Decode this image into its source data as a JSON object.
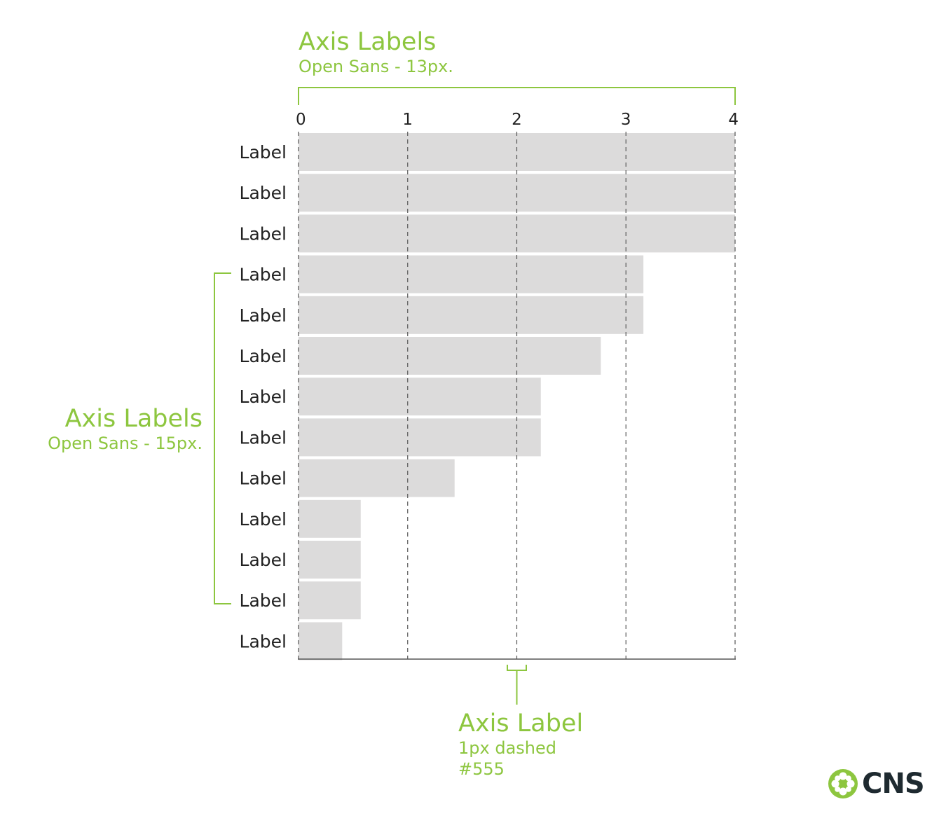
{
  "chart_data": {
    "type": "bar",
    "orientation": "horizontal",
    "categories": [
      "Label",
      "Label",
      "Label",
      "Label",
      "Label",
      "Label",
      "Label",
      "Label",
      "Label",
      "Label",
      "Label",
      "Label",
      "Label"
    ],
    "values": [
      4,
      4,
      4,
      3.16,
      3.16,
      2.77,
      2.22,
      2.22,
      1.43,
      0.57,
      0.57,
      0.57,
      0.4
    ],
    "xlim": [
      0,
      4
    ],
    "x_ticks": [
      "0",
      "1",
      "2",
      "3",
      "4"
    ],
    "grid": "vertical dashed",
    "colors": {
      "bar": "#dcdbdb",
      "grid": "#555555",
      "axis": "#555555",
      "text": "#222222"
    }
  },
  "annotations": {
    "top": {
      "title": "Axis Labels",
      "subtitle": "Open Sans - 13px."
    },
    "left": {
      "title": "Axis Labels",
      "subtitle": "Open Sans - 15px."
    },
    "bottom": {
      "title": "Axis Label",
      "line1": "1px dashed",
      "line2": "#555"
    },
    "color": "#8dc63f"
  },
  "logo": {
    "text": "CNS",
    "color": "#1e2a30",
    "icon": "cns-flower-icon"
  }
}
